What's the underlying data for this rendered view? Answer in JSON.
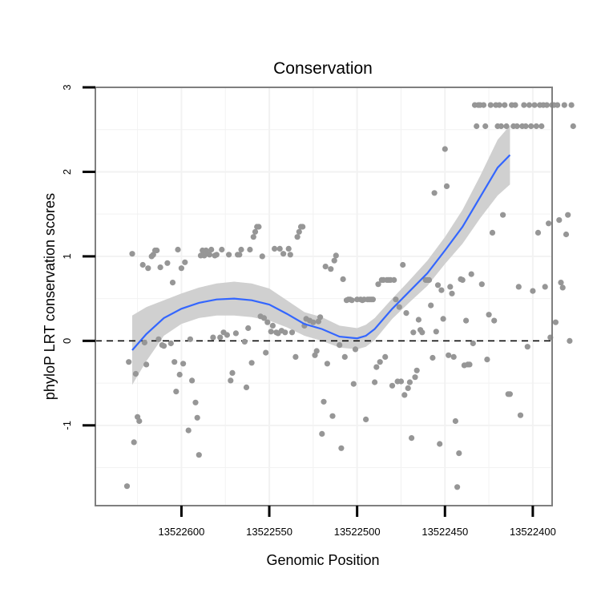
{
  "chart_data": {
    "type": "scatter",
    "title": "Conservation",
    "xlabel": "Genomic Position",
    "ylabel": "phyloP LRT conservation scores",
    "x_reversed": true,
    "xlim": [
      13522649,
      13522389
    ],
    "ylim": [
      -1.95,
      3.0
    ],
    "x_ticks": [
      13522600,
      13522550,
      13522500,
      13522450,
      13522400
    ],
    "x_tick_labels": [
      "13522600",
      "13522550",
      "13522500",
      "13522450",
      "13522400"
    ],
    "y_ticks": [
      -1,
      0,
      1,
      2,
      3
    ],
    "y_tick_labels": [
      "-1",
      "0",
      "1",
      "2",
      "3"
    ],
    "grid": true,
    "reference_line": {
      "y": 0,
      "style": "dashed"
    },
    "colors": {
      "points": "#969696",
      "smooth_line": "#3366ff",
      "confidence_band": "#d0d0d0",
      "grid": "#f2f2f2",
      "frame": "#7f7f7f"
    },
    "points": [
      [
        13522631,
        -1.72
      ],
      [
        13522628,
        1.03
      ],
      [
        13522630,
        -0.25
      ],
      [
        13522627,
        -1.2
      ],
      [
        13522626,
        -0.39
      ],
      [
        13522625,
        -0.9
      ],
      [
        13522624,
        -0.95
      ],
      [
        13522622,
        0.9
      ],
      [
        13522621,
        -0.02
      ],
      [
        13522620,
        -0.28
      ],
      [
        13522619,
        0.86
      ],
      [
        13522617,
        1.0
      ],
      [
        13522616,
        1.02
      ],
      [
        13522615,
        1.07
      ],
      [
        13522614,
        1.07
      ],
      [
        13522613,
        0.02
      ],
      [
        13522612,
        0.87
      ],
      [
        13522611,
        -0.05
      ],
      [
        13522610,
        -0.06
      ],
      [
        13522608,
        0.92
      ],
      [
        13522606,
        -0.03
      ],
      [
        13522605,
        0.69
      ],
      [
        13522604,
        -0.25
      ],
      [
        13522603,
        -0.6
      ],
      [
        13522602,
        1.08
      ],
      [
        13522601,
        -0.4
      ],
      [
        13522600,
        0.86
      ],
      [
        13522599,
        -0.27
      ],
      [
        13522598,
        0.93
      ],
      [
        13522596,
        -1.06
      ],
      [
        13522595,
        0.02
      ],
      [
        13522594,
        -0.47
      ],
      [
        13522592,
        -0.73
      ],
      [
        13522591,
        -0.91
      ],
      [
        13522590,
        -1.35
      ],
      [
        13522589,
        1.01
      ],
      [
        13522588,
        1.07
      ],
      [
        13522587,
        1.01
      ],
      [
        13522586,
        1.07
      ],
      [
        13522585,
        1.03
      ],
      [
        13522584,
        1.02
      ],
      [
        13522583,
        1.08
      ],
      [
        13522582,
        0.04
      ],
      [
        13522581,
        1.01
      ],
      [
        13522580,
        1.02
      ],
      [
        13522578,
        0.04
      ],
      [
        13522577,
        1.08
      ],
      [
        13522576,
        0.1
      ],
      [
        13522574,
        0.07
      ],
      [
        13522573,
        1.02
      ],
      [
        13522572,
        -0.47
      ],
      [
        13522571,
        -0.38
      ],
      [
        13522569,
        0.09
      ],
      [
        13522568,
        1.02
      ],
      [
        13522567,
        1.02
      ],
      [
        13522566,
        1.08
      ],
      [
        13522564,
        -0.01
      ],
      [
        13522563,
        -0.55
      ],
      [
        13522562,
        0.15
      ],
      [
        13522561,
        1.08
      ],
      [
        13522560,
        -0.26
      ],
      [
        13522559,
        1.23
      ],
      [
        13522558,
        1.29
      ],
      [
        13522557,
        1.35
      ],
      [
        13522556,
        1.35
      ],
      [
        13522555,
        0.29
      ],
      [
        13522554,
        1.0
      ],
      [
        13522553,
        0.27
      ],
      [
        13522552,
        -0.14
      ],
      [
        13522551,
        0.22
      ],
      [
        13522549,
        0.11
      ],
      [
        13522548,
        0.18
      ],
      [
        13522547,
        1.09
      ],
      [
        13522546,
        0.1
      ],
      [
        13522545,
        0.09
      ],
      [
        13522544,
        1.09
      ],
      [
        13522543,
        0.12
      ],
      [
        13522542,
        1.03
      ],
      [
        13522541,
        0.1
      ],
      [
        13522539,
        1.09
      ],
      [
        13522538,
        1.02
      ],
      [
        13522537,
        0.1
      ],
      [
        13522535,
        -0.19
      ],
      [
        13522534,
        1.23
      ],
      [
        13522533,
        1.29
      ],
      [
        13522532,
        1.35
      ],
      [
        13522531,
        1.35
      ],
      [
        13522530,
        0.18
      ],
      [
        13522529,
        0.26
      ],
      [
        13522527,
        0.24
      ],
      [
        13522525,
        0.22
      ],
      [
        13522524,
        -0.17
      ],
      [
        13522523,
        -0.12
      ],
      [
        13522522,
        0.23
      ],
      [
        13522521,
        0.28
      ],
      [
        13522520,
        -1.1
      ],
      [
        13522519,
        -0.72
      ],
      [
        13522518,
        0.88
      ],
      [
        13522517,
        -0.27
      ],
      [
        13522515,
        0.85
      ],
      [
        13522514,
        -0.89
      ],
      [
        13522513,
        0.95
      ],
      [
        13522512,
        1.01
      ],
      [
        13522510,
        -0.05
      ],
      [
        13522509,
        -1.27
      ],
      [
        13522508,
        0.73
      ],
      [
        13522507,
        -0.19
      ],
      [
        13522506,
        0.48
      ],
      [
        13522505,
        0.49
      ],
      [
        13522504,
        0.49
      ],
      [
        13522503,
        0.48
      ],
      [
        13522502,
        -0.51
      ],
      [
        13522501,
        -0.1
      ],
      [
        13522500,
        0.49
      ],
      [
        13522498,
        0.49
      ],
      [
        13522497,
        0.48
      ],
      [
        13522496,
        0.49
      ],
      [
        13522495,
        -0.93
      ],
      [
        13522494,
        0.49
      ],
      [
        13522493,
        0.49
      ],
      [
        13522492,
        0.49
      ],
      [
        13522491,
        0.49
      ],
      [
        13522490,
        -0.49
      ],
      [
        13522489,
        -0.31
      ],
      [
        13522488,
        0.67
      ],
      [
        13522487,
        -0.25
      ],
      [
        13522486,
        0.72
      ],
      [
        13522485,
        0.72
      ],
      [
        13522484,
        -0.19
      ],
      [
        13522483,
        0.72
      ],
      [
        13522482,
        0.72
      ],
      [
        13522481,
        0.72
      ],
      [
        13522480,
        -0.53
      ],
      [
        13522479,
        0.72
      ],
      [
        13522478,
        0.49
      ],
      [
        13522477,
        -0.48
      ],
      [
        13522476,
        0.4
      ],
      [
        13522475,
        -0.48
      ],
      [
        13522474,
        0.9
      ],
      [
        13522473,
        -0.64
      ],
      [
        13522472,
        0.33
      ],
      [
        13522471,
        -0.56
      ],
      [
        13522470,
        -0.49
      ],
      [
        13522469,
        -1.15
      ],
      [
        13522468,
        0.1
      ],
      [
        13522467,
        -0.43
      ],
      [
        13522466,
        -0.35
      ],
      [
        13522465,
        0.25
      ],
      [
        13522464,
        0.13
      ],
      [
        13522463,
        0.1
      ],
      [
        13522461,
        0.72
      ],
      [
        13522460,
        0.72
      ],
      [
        13522459,
        0.72
      ],
      [
        13522458,
        0.42
      ],
      [
        13522457,
        -0.2
      ],
      [
        13522456,
        1.75
      ],
      [
        13522455,
        0.11
      ],
      [
        13522454,
        0.66
      ],
      [
        13522453,
        -1.22
      ],
      [
        13522452,
        0.6
      ],
      [
        13522451,
        0.26
      ],
      [
        13522450,
        2.27
      ],
      [
        13522449,
        1.83
      ],
      [
        13522448,
        -0.17
      ],
      [
        13522447,
        0.64
      ],
      [
        13522446,
        0.56
      ],
      [
        13522445,
        -0.19
      ],
      [
        13522444,
        -0.95
      ],
      [
        13522443,
        -1.73
      ],
      [
        13522442,
        -1.33
      ],
      [
        13522441,
        0.73
      ],
      [
        13522440,
        0.72
      ],
      [
        13522439,
        -0.29
      ],
      [
        13522438,
        0.24
      ],
      [
        13522437,
        -0.28
      ],
      [
        13522436,
        -0.28
      ],
      [
        13522435,
        0.79
      ],
      [
        13522434,
        -0.03
      ],
      [
        13522433,
        2.79
      ],
      [
        13522432,
        2.54
      ],
      [
        13522431,
        2.79
      ],
      [
        13522430,
        2.79
      ],
      [
        13522429,
        0.67
      ],
      [
        13522428,
        2.79
      ],
      [
        13522427,
        2.54
      ],
      [
        13522426,
        -0.22
      ],
      [
        13522425,
        0.31
      ],
      [
        13522424,
        2.79
      ],
      [
        13522423,
        1.28
      ],
      [
        13522422,
        0.24
      ],
      [
        13522421,
        2.79
      ],
      [
        13522420,
        2.54
      ],
      [
        13522419,
        2.79
      ],
      [
        13522418,
        2.54
      ],
      [
        13522417,
        1.49
      ],
      [
        13522416,
        2.79
      ],
      [
        13522415,
        2.54
      ],
      [
        13522414,
        -0.63
      ],
      [
        13522413,
        -0.63
      ],
      [
        13522412,
        2.79
      ],
      [
        13522411,
        2.54
      ],
      [
        13522410,
        2.79
      ],
      [
        13522409,
        2.54
      ],
      [
        13522408,
        0.64
      ],
      [
        13522407,
        -0.88
      ],
      [
        13522406,
        2.54
      ],
      [
        13522405,
        2.79
      ],
      [
        13522404,
        2.54
      ],
      [
        13522403,
        -0.07
      ],
      [
        13522402,
        2.79
      ],
      [
        13522401,
        2.54
      ],
      [
        13522400,
        0.59
      ],
      [
        13522399,
        2.79
      ],
      [
        13522398,
        2.54
      ],
      [
        13522397,
        1.28
      ],
      [
        13522396,
        2.79
      ],
      [
        13522395,
        2.54
      ],
      [
        13522394,
        2.79
      ],
      [
        13522393,
        0.64
      ],
      [
        13522392,
        2.79
      ],
      [
        13522391,
        1.39
      ],
      [
        13522390,
        0.04
      ],
      [
        13522389,
        2.79
      ],
      [
        13522388,
        2.79
      ],
      [
        13522387,
        0.22
      ],
      [
        13522386,
        2.79
      ],
      [
        13522385,
        1.43
      ],
      [
        13522384,
        0.69
      ],
      [
        13522383,
        0.63
      ],
      [
        13522382,
        2.79
      ],
      [
        13522381,
        1.26
      ],
      [
        13522380,
        1.49
      ],
      [
        13522379,
        0.0
      ],
      [
        13522378,
        2.79
      ],
      [
        13522377,
        2.54
      ]
    ],
    "smooth_line": [
      [
        13522628,
        -0.11
      ],
      [
        13522620,
        0.08
      ],
      [
        13522610,
        0.27
      ],
      [
        13522600,
        0.38
      ],
      [
        13522590,
        0.45
      ],
      [
        13522580,
        0.49
      ],
      [
        13522570,
        0.5
      ],
      [
        13522560,
        0.48
      ],
      [
        13522550,
        0.43
      ],
      [
        13522540,
        0.32
      ],
      [
        13522530,
        0.2
      ],
      [
        13522520,
        0.14
      ],
      [
        13522510,
        0.05
      ],
      [
        13522500,
        0.03
      ],
      [
        13522495,
        0.06
      ],
      [
        13522490,
        0.14
      ],
      [
        13522480,
        0.38
      ],
      [
        13522470,
        0.59
      ],
      [
        13522460,
        0.8
      ],
      [
        13522450,
        1.07
      ],
      [
        13522440,
        1.35
      ],
      [
        13522430,
        1.7
      ],
      [
        13522420,
        2.05
      ],
      [
        13522413,
        2.2
      ]
    ],
    "confidence_upper": [
      [
        13522628,
        0.3
      ],
      [
        13522620,
        0.4
      ],
      [
        13522610,
        0.48
      ],
      [
        13522600,
        0.56
      ],
      [
        13522590,
        0.63
      ],
      [
        13522580,
        0.68
      ],
      [
        13522570,
        0.7
      ],
      [
        13522560,
        0.68
      ],
      [
        13522550,
        0.62
      ],
      [
        13522540,
        0.48
      ],
      [
        13522530,
        0.34
      ],
      [
        13522520,
        0.28
      ],
      [
        13522510,
        0.18
      ],
      [
        13522500,
        0.15
      ],
      [
        13522495,
        0.19
      ],
      [
        13522490,
        0.27
      ],
      [
        13522480,
        0.5
      ],
      [
        13522470,
        0.72
      ],
      [
        13522460,
        0.95
      ],
      [
        13522450,
        1.23
      ],
      [
        13522440,
        1.55
      ],
      [
        13522430,
        1.95
      ],
      [
        13522420,
        2.38
      ],
      [
        13522413,
        2.55
      ]
    ],
    "confidence_lower": [
      [
        13522628,
        -0.52
      ],
      [
        13522620,
        -0.24
      ],
      [
        13522610,
        0.06
      ],
      [
        13522600,
        0.2
      ],
      [
        13522590,
        0.27
      ],
      [
        13522580,
        0.3
      ],
      [
        13522570,
        0.3
      ],
      [
        13522560,
        0.28
      ],
      [
        13522550,
        0.24
      ],
      [
        13522540,
        0.16
      ],
      [
        13522530,
        0.06
      ],
      [
        13522520,
        0.0
      ],
      [
        13522510,
        -0.08
      ],
      [
        13522500,
        -0.1
      ],
      [
        13522495,
        -0.07
      ],
      [
        13522490,
        0.01
      ],
      [
        13522480,
        0.26
      ],
      [
        13522470,
        0.46
      ],
      [
        13522460,
        0.65
      ],
      [
        13522450,
        0.91
      ],
      [
        13522440,
        1.15
      ],
      [
        13522430,
        1.45
      ],
      [
        13522420,
        1.72
      ],
      [
        13522413,
        1.85
      ]
    ]
  }
}
